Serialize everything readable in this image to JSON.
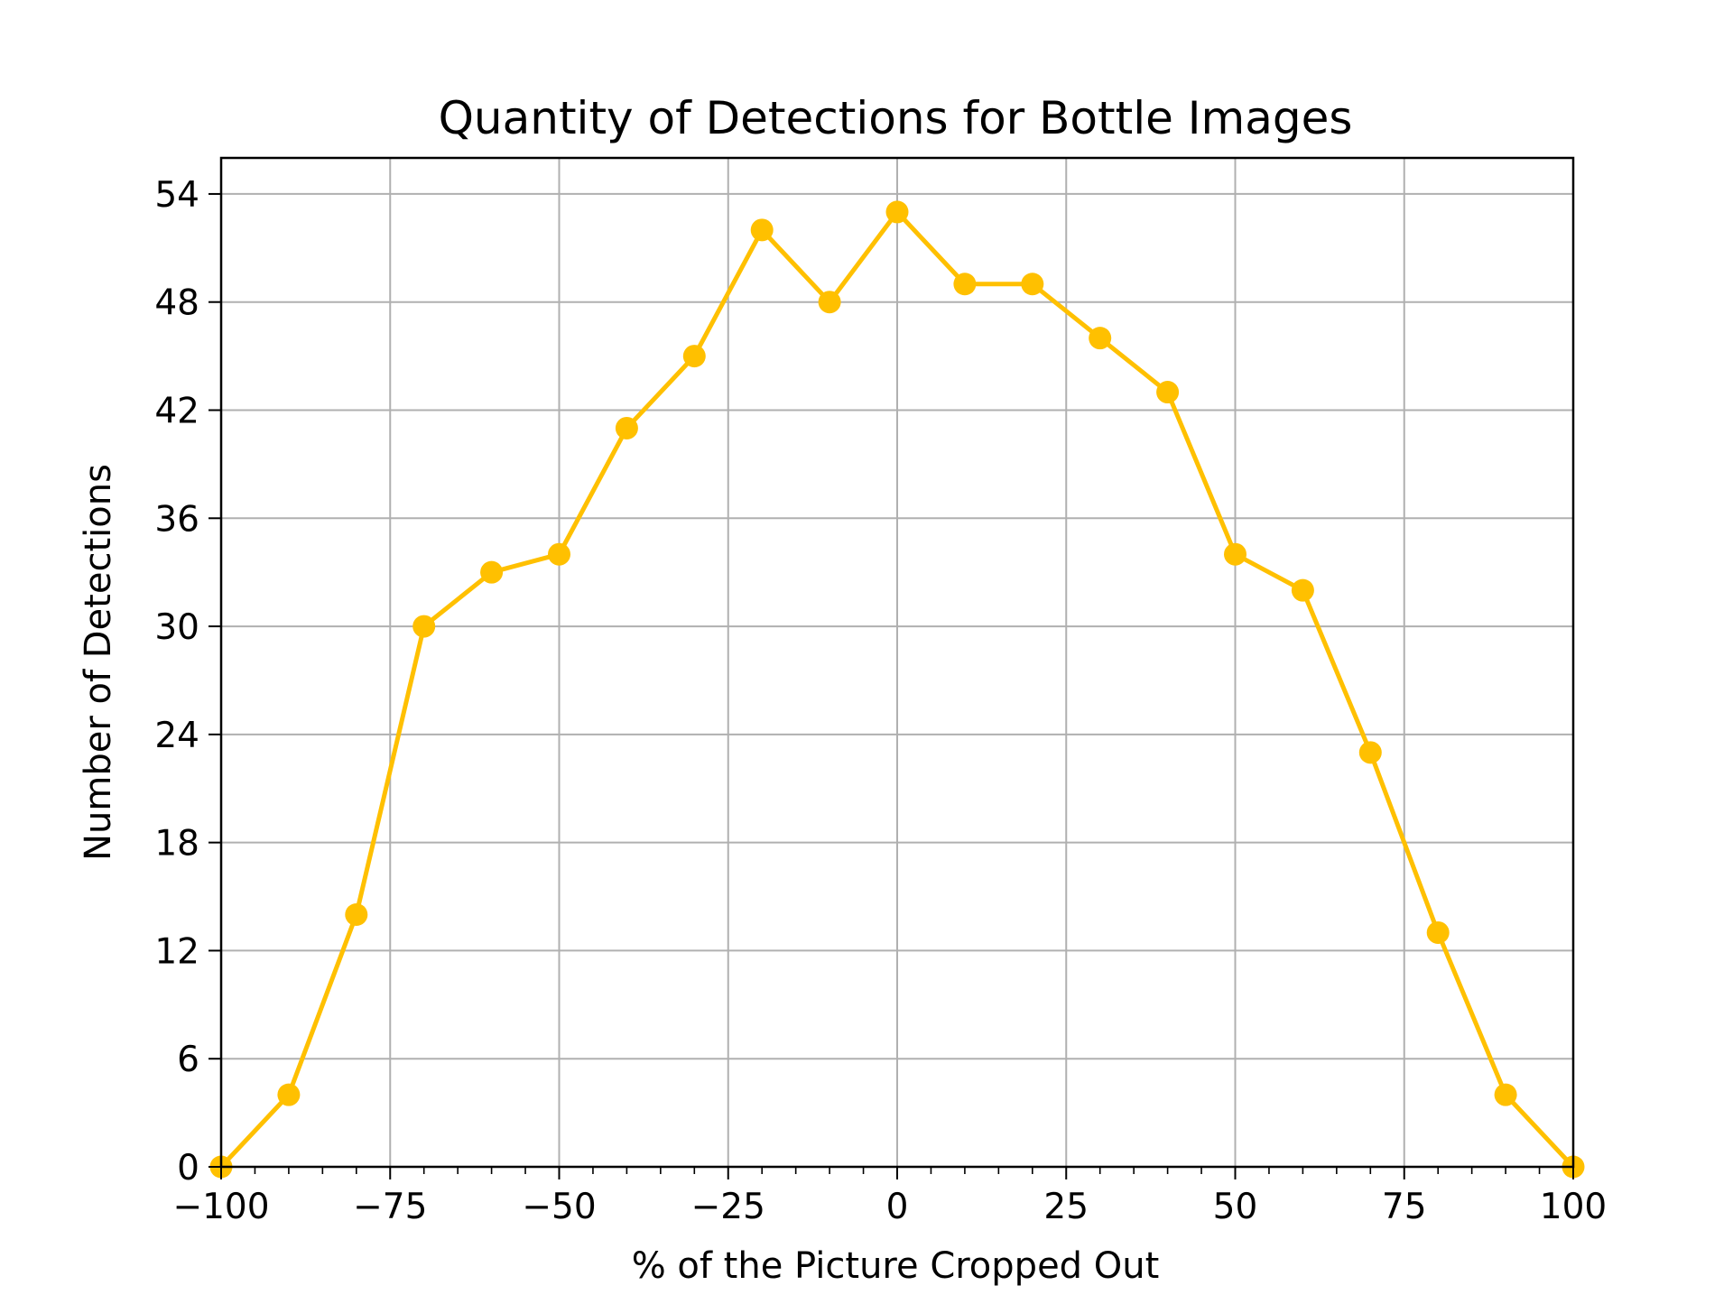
{
  "chart_data": {
    "type": "line",
    "title": "Quantity of Detections for Bottle Images",
    "xlabel": "% of the Picture Cropped Out",
    "ylabel": "Number of Detections",
    "xlim": [
      -100,
      100
    ],
    "ylim": [
      0,
      56
    ],
    "grid": true,
    "x_ticks": [
      -100,
      -75,
      -50,
      -25,
      0,
      25,
      50,
      75,
      100
    ],
    "x_tick_labels": [
      "−100",
      "−75",
      "−50",
      "−25",
      "0",
      "25",
      "50",
      "75",
      "100"
    ],
    "y_ticks": [
      0,
      6,
      12,
      18,
      24,
      30,
      36,
      42,
      48,
      54
    ],
    "y_tick_labels": [
      "0",
      "6",
      "12",
      "18",
      "24",
      "30",
      "36",
      "42",
      "48",
      "54"
    ],
    "series": [
      {
        "name": "Bottle",
        "color": "#ffc000",
        "x": [
          -100,
          -90,
          -80,
          -70,
          -60,
          -50,
          -40,
          -30,
          -20,
          -10,
          0,
          10,
          20,
          30,
          40,
          50,
          60,
          70,
          80,
          90,
          100
        ],
        "y": [
          0,
          4,
          14,
          30,
          33,
          34,
          41,
          45,
          52,
          48,
          53,
          49,
          49,
          46,
          43,
          34,
          32,
          23,
          13,
          4,
          0
        ]
      }
    ]
  }
}
